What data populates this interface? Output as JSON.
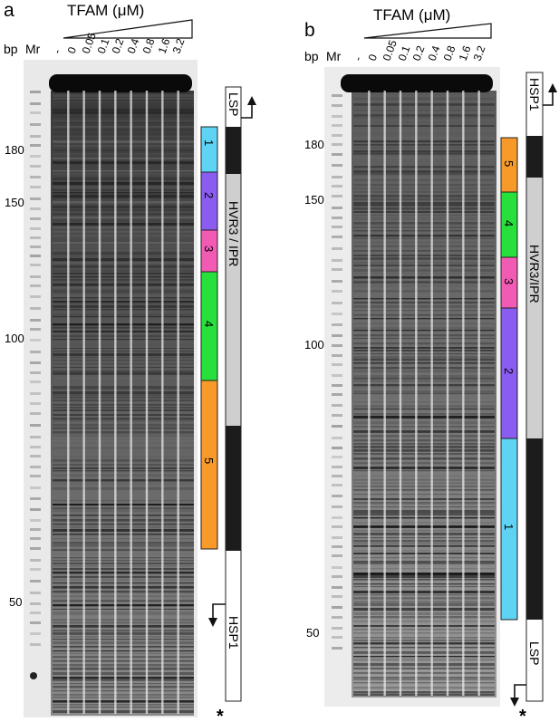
{
  "panel_a": {
    "label": "a",
    "title": "TFAM (μM)",
    "bp_label": "bp",
    "mr_label": "Mr",
    "lanes": [
      "-",
      "0",
      "0.05",
      "0.1",
      "0.2",
      "0.4",
      "0.8",
      "1.6",
      "3.2"
    ],
    "bp_markers": [
      "180",
      "150",
      "100",
      "50"
    ],
    "sites": [
      "1",
      "2",
      "3",
      "4",
      "5"
    ],
    "region_labels": {
      "lsp": "LSP",
      "hvr": "HVR3 / IPR",
      "hsp": "HSP1"
    },
    "asterisk": "*"
  },
  "panel_b": {
    "label": "b",
    "title": "TFAM (μM)",
    "bp_label": "bp",
    "mr_label": "Mr",
    "lanes": [
      "-",
      "0",
      "0.05",
      "0.1",
      "0.2",
      "0.4",
      "0.8",
      "1.6",
      "3.2"
    ],
    "bp_markers": [
      "180",
      "150",
      "100",
      "50"
    ],
    "sites": [
      "5",
      "4",
      "3",
      "2",
      "1"
    ],
    "region_labels": {
      "hsp": "HSP1",
      "hvr": "HVR3/IPR",
      "lsp": "LSP"
    },
    "asterisk": "*"
  },
  "colors": {
    "site_1": "#5fd3f3",
    "site_2": "#8a5cf0",
    "site_3": "#f25bb4",
    "site_4": "#28e03c",
    "site_5": "#f79a2a",
    "region_dark": "#1c1c1c",
    "region_grey": "#cfcfcf"
  }
}
